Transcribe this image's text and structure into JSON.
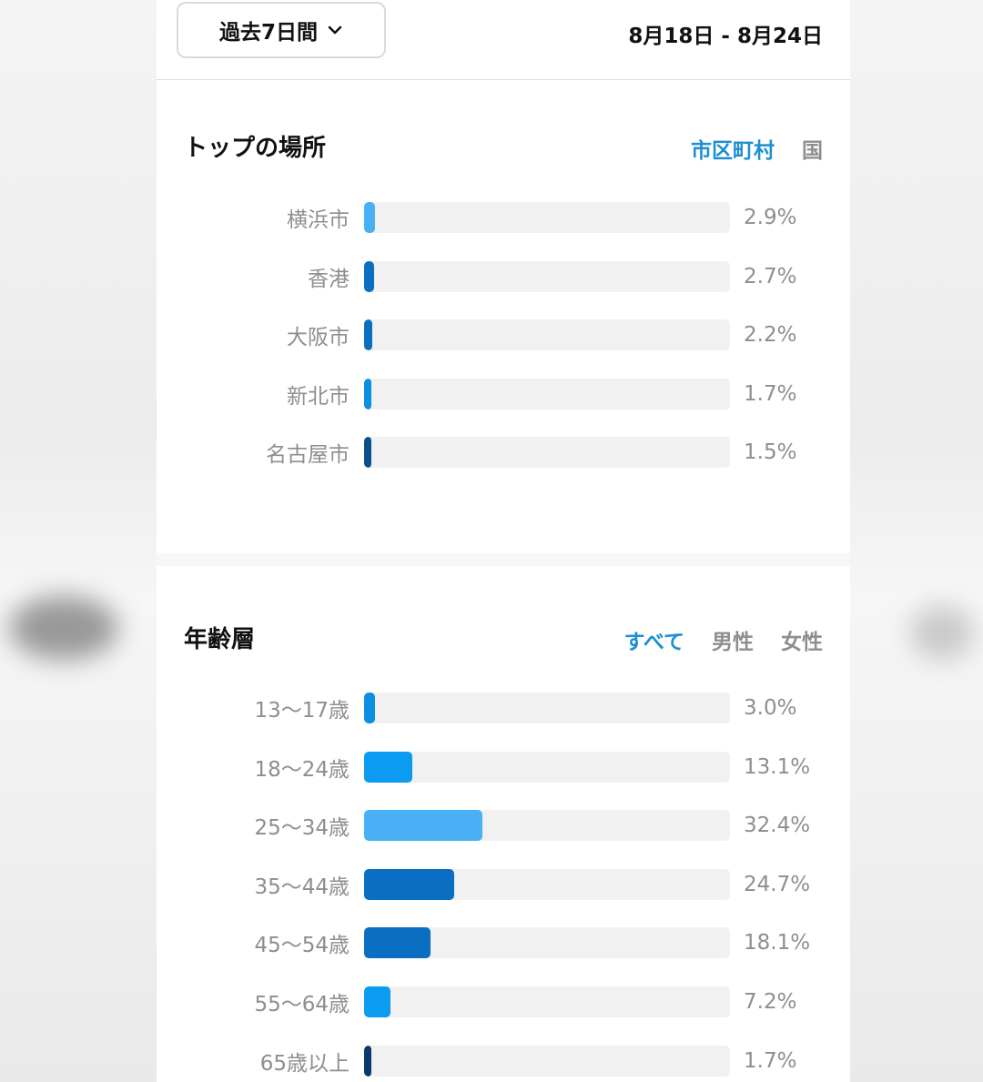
{
  "header": {
    "period_label": "過去7日間",
    "date_range": "8月18日 - 8月24日"
  },
  "top_locations": {
    "title": "トップの場所",
    "filters": [
      {
        "label": "市区町村",
        "active": true
      },
      {
        "label": "国",
        "active": false
      }
    ],
    "rows": [
      {
        "label": "横浜市",
        "value_text": "2.9%",
        "value": 2.9,
        "color": "#4ab0f5"
      },
      {
        "label": "香港",
        "value_text": "2.7%",
        "value": 2.7,
        "color": "#0a6fc2"
      },
      {
        "label": "大阪市",
        "value_text": "2.2%",
        "value": 2.2,
        "color": "#0a6fc2"
      },
      {
        "label": "新北市",
        "value_text": "1.7%",
        "value": 1.7,
        "color": "#0b8fe0"
      },
      {
        "label": "名古屋市",
        "value_text": "1.5%",
        "value": 1.5,
        "color": "#0a4f8a"
      }
    ]
  },
  "age_groups": {
    "title": "年齢層",
    "filters": [
      {
        "label": "すべて",
        "active": true
      },
      {
        "label": "男性",
        "active": false
      },
      {
        "label": "女性",
        "active": false
      }
    ],
    "rows": [
      {
        "label": "13〜17歳",
        "value_text": "3.0%",
        "value": 3.0,
        "color": "#0b8fe0"
      },
      {
        "label": "18〜24歳",
        "value_text": "13.1%",
        "value": 13.1,
        "color": "#0b9bf0"
      },
      {
        "label": "25〜34歳",
        "value_text": "32.4%",
        "value": 32.4,
        "color": "#4ab0f5"
      },
      {
        "label": "35〜44歳",
        "value_text": "24.7%",
        "value": 24.7,
        "color": "#0a6fc2"
      },
      {
        "label": "45〜54歳",
        "value_text": "18.1%",
        "value": 18.1,
        "color": "#0a6fc2"
      },
      {
        "label": "55〜64歳",
        "value_text": "7.2%",
        "value": 7.2,
        "color": "#0b9bf0"
      },
      {
        "label": "65歳以上",
        "value_text": "1.7%",
        "value": 1.7,
        "color": "#0a3a6a"
      }
    ]
  },
  "chart_data": [
    {
      "type": "bar",
      "title": "トップの場所",
      "categories": [
        "横浜市",
        "香港",
        "大阪市",
        "新北市",
        "名古屋市"
      ],
      "values": [
        2.9,
        2.7,
        2.2,
        1.7,
        1.5
      ],
      "xlim": [
        0,
        100
      ]
    },
    {
      "type": "bar",
      "title": "年齢層",
      "categories": [
        "13〜17歳",
        "18〜24歳",
        "25〜34歳",
        "35〜44歳",
        "45〜54歳",
        "55〜64歳",
        "65歳以上"
      ],
      "values": [
        3.0,
        13.1,
        32.4,
        24.7,
        18.1,
        7.2,
        1.7
      ],
      "xlim": [
        0,
        100
      ]
    }
  ]
}
